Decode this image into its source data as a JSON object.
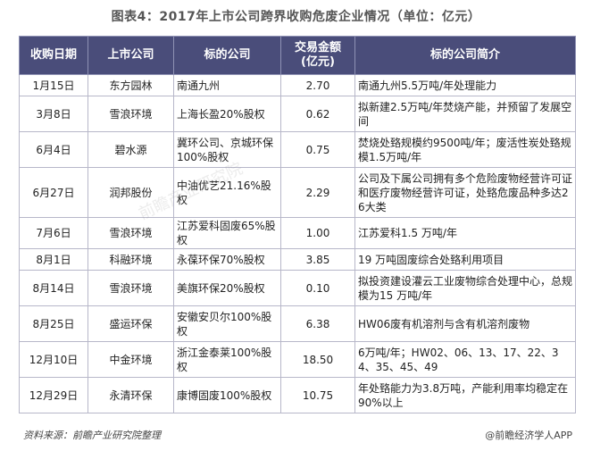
{
  "title": "图表4：2017年上市公司跨界收购危废企业情况（单位：亿元）",
  "table": {
    "headers": [
      "收购日期",
      "上市公司",
      "标的公司",
      "交易金额\n(亿元)",
      "标的公司简介"
    ],
    "rows": [
      [
        "1月15日",
        "东方园林",
        "南通九州",
        "2.70",
        "南通九州5.5万吨/年处理能力"
      ],
      [
        "3月8日",
        "雪浪环境",
        "上海长盈20%股权",
        "0.62",
        "拟新建2.5万吨/年焚烧产能，并预留了发展空间"
      ],
      [
        "6月4日",
        "碧水源",
        "冀环公司、京城环保100%股权",
        "0.75",
        "焚烧处臵规模约9500吨/年；废活性炭处臵规模1.5万吨/年"
      ],
      [
        "6月27日",
        "润邦股份",
        "中油优艺21.16%股权",
        "2.29",
        "公司及下属公司拥有多个危险废物经营许可证和医疗废物经营许可证，处臵危废品种多达26大类"
      ],
      [
        "7月6日",
        "雪浪环境",
        "江苏爱科固废65%股权",
        "1.00",
        "江苏爱科1.5 万吨/年"
      ],
      [
        "8月1日",
        "科融环境",
        "永葆环保70%股权",
        "3.85",
        "19 万吨固废综合处臵利用项目"
      ],
      [
        "8月14日",
        "雪浪环境",
        "美旗环保20%股权",
        "0.10",
        "拟投资建设灌云工业废物综合处理中心，总规模为15 万吨/年"
      ],
      [
        "8月25日",
        "盛运环保",
        "安徽安贝尔100%股权",
        "6.38",
        "HW06废有机溶剂与含有机溶剂废物"
      ],
      [
        "12月10日",
        "中金环境",
        "浙江金泰莱100%股权",
        "18.50",
        "6万吨/年；HW02、06、13、17、22、34、35、45、49"
      ],
      [
        "12月29日",
        "永清环保",
        "康博固废100%股权",
        "10.75",
        "年处臵能力为3.8万吨，产能利用率均稳定在90%以上"
      ]
    ]
  },
  "footer": {
    "source": "资料来源：前瞻产业研究院整理",
    "credit": "@前瞻经济学人APP"
  },
  "watermark": "前瞻产业研究院"
}
